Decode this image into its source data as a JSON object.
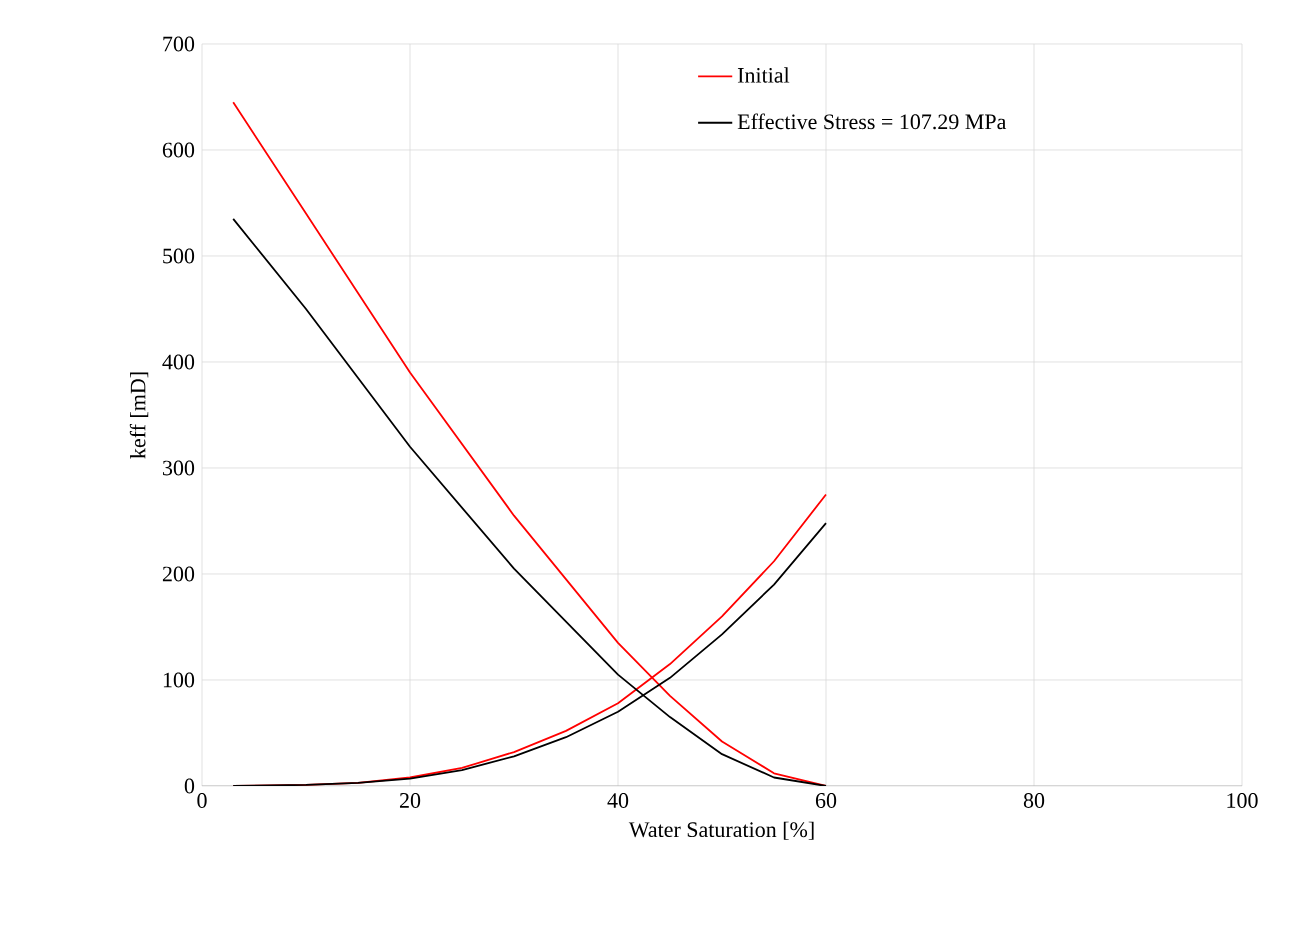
{
  "chart_data": {
    "type": "line",
    "xlabel": "Water Saturation [%]",
    "ylabel": "keff [mD]",
    "xlim": [
      0,
      100
    ],
    "xticks": [
      0,
      20,
      40,
      60,
      80,
      100
    ],
    "ylim": [
      0,
      700
    ],
    "yticks": [
      0,
      100,
      200,
      300,
      400,
      500,
      600,
      700
    ],
    "grid": true,
    "legend": "top right",
    "marker": "none",
    "line_style": "solid",
    "series": [
      {
        "name": "Initial",
        "color": "#ff0000",
        "x": [
          3,
          10,
          20,
          30,
          40,
          45,
          50,
          55,
          60
        ],
        "values": [
          645,
          540,
          390,
          255,
          135,
          85,
          42,
          12,
          0
        ]
      },
      {
        "color": "#ff0000",
        "x": [
          3,
          10,
          15,
          20,
          25,
          30,
          35,
          40,
          45,
          50,
          55,
          60
        ],
        "values": [
          0,
          1,
          3,
          8,
          17,
          32,
          52,
          78,
          115,
          160,
          212,
          275
        ]
      },
      {
        "name": "Effective Stress = 107.29 MPa",
        "color": "#000000",
        "x": [
          3,
          10,
          20,
          30,
          40,
          45,
          50,
          55,
          60
        ],
        "values": [
          535,
          450,
          320,
          205,
          105,
          65,
          30,
          8,
          0
        ]
      },
      {
        "color": "#000000",
        "x": [
          3,
          10,
          15,
          20,
          25,
          30,
          35,
          40,
          45,
          50,
          55,
          60
        ],
        "values": [
          0,
          1,
          3,
          7,
          15,
          28,
          46,
          70,
          102,
          143,
          190,
          248
        ]
      }
    ]
  }
}
